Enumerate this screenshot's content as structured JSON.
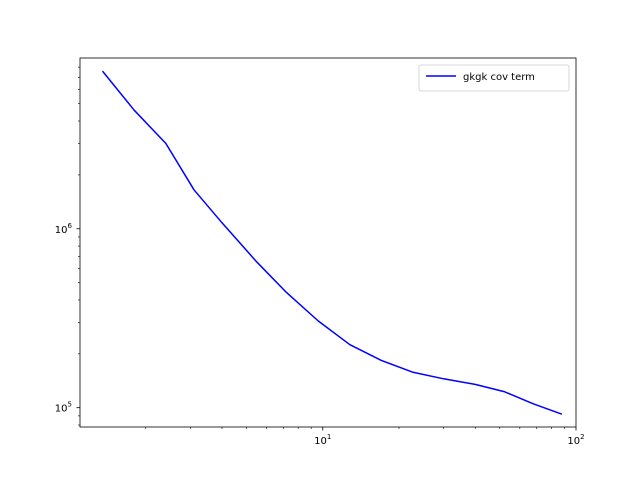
{
  "chart_data": {
    "type": "line",
    "xscale": "log",
    "yscale": "log",
    "xlim": [
      1.1,
      100
    ],
    "ylim": [
      78000,
      9000000
    ],
    "xticks": [
      {
        "value": 10,
        "base": "10",
        "exp": "1"
      },
      {
        "value": 100,
        "base": "10",
        "exp": "2"
      }
    ],
    "yticks": [
      {
        "value": 100000,
        "base": "10",
        "exp": "5"
      },
      {
        "value": 1000000,
        "base": "10",
        "exp": "6"
      }
    ],
    "grid": false,
    "legend_position": "top-right",
    "series": [
      {
        "name": "gkgk cov term",
        "color": "#0000ff",
        "x": [
          1.35,
          1.8,
          2.4,
          3.1,
          4.0,
          5.5,
          7.2,
          9.6,
          12.8,
          17.0,
          22.6,
          30.0,
          40.0,
          52.0,
          68.0,
          88.0
        ],
        "y": [
          7600000,
          4600000,
          3000000,
          1650000,
          1080000,
          650000,
          440000,
          305000,
          225000,
          184000,
          158000,
          145000,
          135000,
          123000,
          105000,
          92000
        ]
      }
    ]
  }
}
